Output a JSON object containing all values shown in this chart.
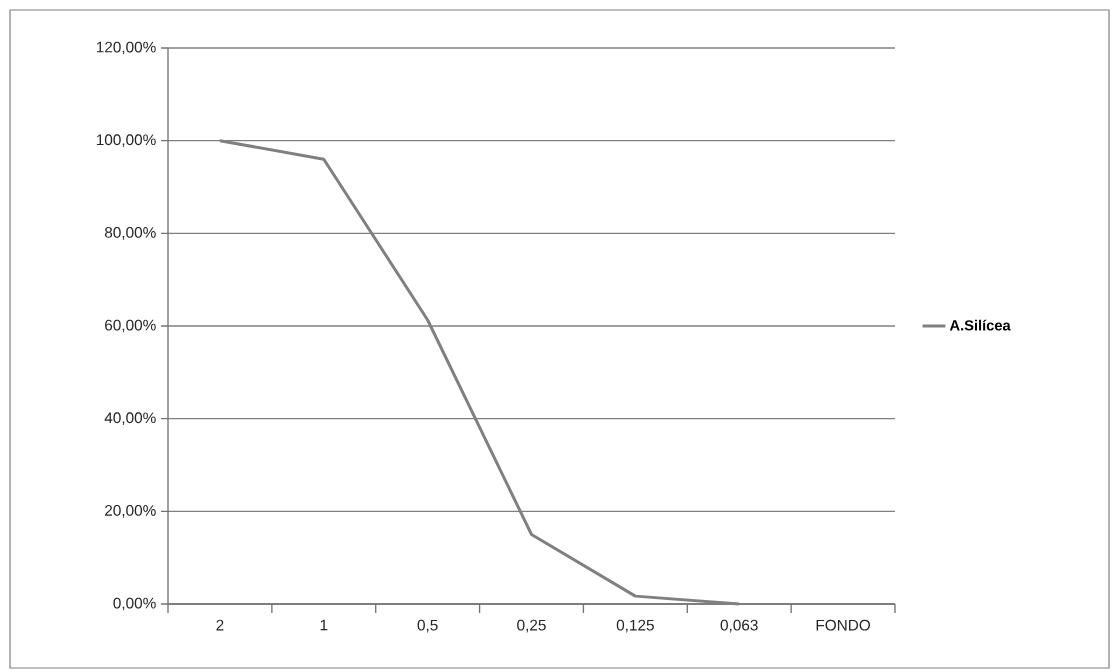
{
  "chart_data": {
    "type": "line",
    "categories": [
      "2",
      "1",
      "0,5",
      "0,25",
      "0,125",
      "0,063",
      "FONDO"
    ],
    "series": [
      {
        "name": "A.Silícea",
        "color": "#808080",
        "values": [
          100,
          96,
          61.3,
          15,
          1.7,
          0,
          null
        ]
      }
    ],
    "ylim": [
      0,
      120
    ],
    "yticks": [
      {
        "value": 0,
        "label": "0,00%"
      },
      {
        "value": 20,
        "label": "20,00%"
      },
      {
        "value": 40,
        "label": "40,00%"
      },
      {
        "value": 60,
        "label": "60,00%"
      },
      {
        "value": 80,
        "label": "80,00%"
      },
      {
        "value": 100,
        "label": "100,00%"
      },
      {
        "value": 120,
        "label": "120,00%"
      }
    ],
    "grid": "y",
    "legend": "right",
    "marker": "none",
    "line_style": "solid"
  }
}
